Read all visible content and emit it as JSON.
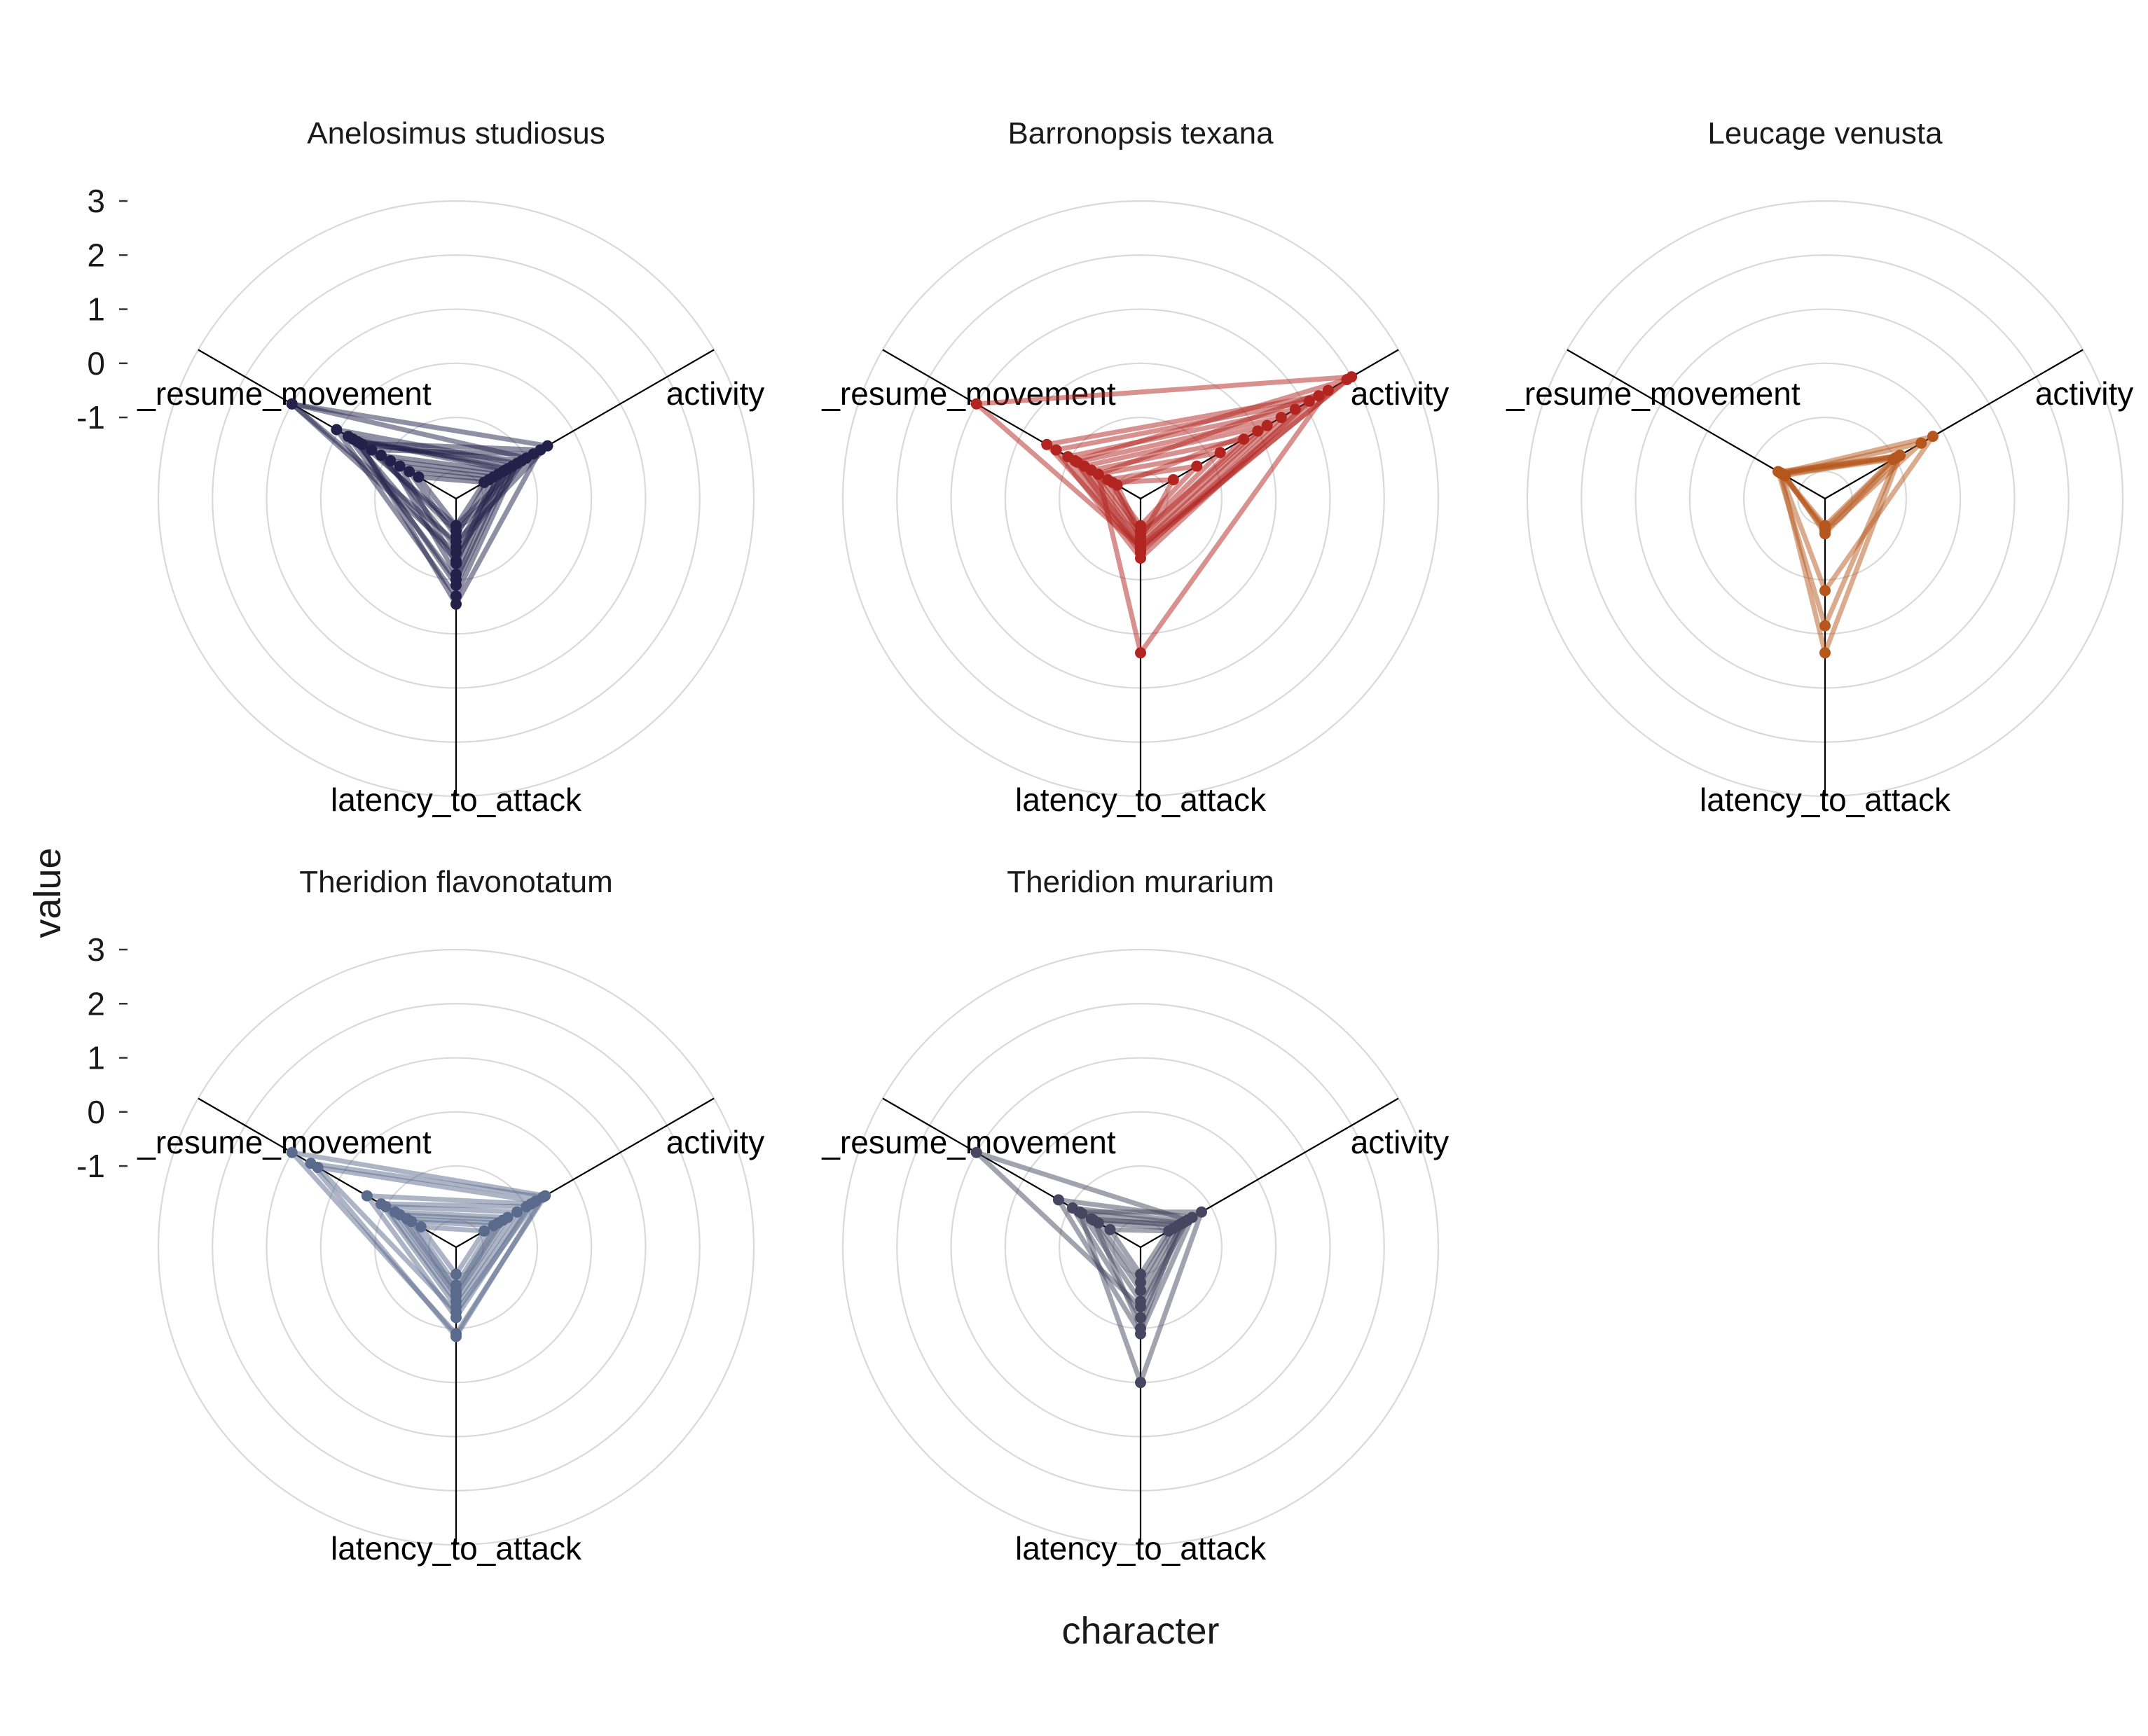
{
  "chart_data": {
    "type": "radar",
    "xlabel": "character",
    "ylabel": "value",
    "axes": [
      "activity",
      "latency_to_attack",
      "_resume_movement"
    ],
    "radial_ticks": [
      -1,
      0,
      1,
      2,
      3
    ],
    "rlim": [
      -2.5,
      3.0
    ],
    "grid": true,
    "panels": [
      {
        "title": "Anelosimus studiosus",
        "color": "#23204a",
        "series": [
          {
            "activity": -0.55,
            "latency_to_attack": -1.7,
            "_resume_movement": 1.0
          },
          {
            "activity": -1.2,
            "latency_to_attack": -0.7,
            "_resume_movement": 0.05
          },
          {
            "activity": -1.3,
            "latency_to_attack": -0.9,
            "_resume_movement": -0.4
          },
          {
            "activity": -0.85,
            "latency_to_attack": -1.9,
            "_resume_movement": -0.7
          },
          {
            "activity": -1.4,
            "latency_to_attack": -1.0,
            "_resume_movement": -0.2
          },
          {
            "activity": -1.5,
            "latency_to_attack": -1.6,
            "_resume_movement": -0.9
          },
          {
            "activity": -1.6,
            "latency_to_attack": -1.1,
            "_resume_movement": -1.1
          },
          {
            "activity": -1.1,
            "latency_to_attack": -2.0,
            "_resume_movement": -0.5
          },
          {
            "activity": -1.7,
            "latency_to_attack": -1.3,
            "_resume_movement": -1.3
          },
          {
            "activity": -1.0,
            "latency_to_attack": -1.5,
            "_resume_movement": 1.0
          },
          {
            "activity": -1.8,
            "latency_to_attack": -1.8,
            "_resume_movement": -1.5
          },
          {
            "activity": -1.45,
            "latency_to_attack": -1.35,
            "_resume_movement": -0.3
          },
          {
            "activity": -1.9,
            "latency_to_attack": -2.0,
            "_resume_movement": -1.7
          },
          {
            "activity": -0.7,
            "latency_to_attack": -0.55,
            "_resume_movement": -0.45
          }
        ]
      },
      {
        "title": "Barronopsis texana",
        "color": "#b2241f",
        "series": [
          {
            "activity": 2.0,
            "latency_to_attack": -1.6,
            "_resume_movement": 1.0
          },
          {
            "activity": 1.5,
            "latency_to_attack": 0.35,
            "_resume_movement": -1.6
          },
          {
            "activity": 1.1,
            "latency_to_attack": -1.4,
            "_resume_movement": -0.7
          },
          {
            "activity": 0.8,
            "latency_to_attack": -1.5,
            "_resume_movement": -0.95
          },
          {
            "activity": 0.5,
            "latency_to_attack": -1.65,
            "_resume_movement": -1.15
          },
          {
            "activity": 0.2,
            "latency_to_attack": -1.7,
            "_resume_movement": -1.3
          },
          {
            "activity": -0.3,
            "latency_to_attack": -1.8,
            "_resume_movement": -1.45
          },
          {
            "activity": -0.8,
            "latency_to_attack": -1.9,
            "_resume_movement": -1.6
          },
          {
            "activity": -1.3,
            "latency_to_attack": -2.0,
            "_resume_movement": -1.8
          },
          {
            "activity": 1.9,
            "latency_to_attack": -1.55,
            "_resume_movement": -1.1
          },
          {
            "activity": 1.3,
            "latency_to_attack": -1.6,
            "_resume_movement": -0.5
          },
          {
            "activity": 0.0,
            "latency_to_attack": -1.85,
            "_resume_movement": -2.0
          },
          {
            "activity": -1.8,
            "latency_to_attack": -1.75,
            "_resume_movement": -1.9
          }
        ]
      },
      {
        "title": "Leucage venusta",
        "color": "#b5571c",
        "series": [
          {
            "activity": -0.9,
            "latency_to_attack": 0.35,
            "_resume_movement": -1.55
          },
          {
            "activity": -0.95,
            "latency_to_attack": -0.15,
            "_resume_movement": -1.5
          },
          {
            "activity": -0.2,
            "latency_to_attack": -0.8,
            "_resume_movement": -1.55
          },
          {
            "activity": -0.45,
            "latency_to_attack": -1.9,
            "_resume_movement": -1.6
          },
          {
            "activity": -0.9,
            "latency_to_attack": -1.85,
            "_resume_movement": -1.65
          },
          {
            "activity": -1.0,
            "latency_to_attack": -1.95,
            "_resume_movement": -1.55
          },
          {
            "activity": -1.05,
            "latency_to_attack": -2.0,
            "_resume_movement": -1.6
          }
        ]
      },
      {
        "title": "Theridion flavonotatum",
        "color": "#5a6a8c",
        "series": [
          {
            "activity": -0.6,
            "latency_to_attack": -0.9,
            "_resume_movement": 1.0
          },
          {
            "activity": -0.65,
            "latency_to_attack": -0.85,
            "_resume_movement": 0.6
          },
          {
            "activity": -0.8,
            "latency_to_attack": -1.3,
            "_resume_movement": 0.45
          },
          {
            "activity": -1.0,
            "latency_to_attack": -1.4,
            "_resume_movement": -0.9
          },
          {
            "activity": -1.2,
            "latency_to_attack": -1.5,
            "_resume_movement": -1.0
          },
          {
            "activity": -1.4,
            "latency_to_attack": -1.6,
            "_resume_movement": -1.2
          },
          {
            "activity": -1.5,
            "latency_to_attack": -1.65,
            "_resume_movement": -1.3
          },
          {
            "activity": -1.6,
            "latency_to_attack": -1.7,
            "_resume_movement": -1.45
          },
          {
            "activity": -1.7,
            "latency_to_attack": -1.8,
            "_resume_movement": -1.55
          },
          {
            "activity": -1.9,
            "latency_to_attack": -2.0,
            "_resume_movement": -1.75
          },
          {
            "activity": -0.9,
            "latency_to_attack": -1.2,
            "_resume_movement": -0.6
          }
        ]
      },
      {
        "title": "Theridion murarium",
        "color": "#474660",
        "series": [
          {
            "activity": -1.5,
            "latency_to_attack": -1.4,
            "_resume_movement": 1.0
          },
          {
            "activity": -1.2,
            "latency_to_attack": 0.0,
            "_resume_movement": -1.2
          },
          {
            "activity": -1.4,
            "latency_to_attack": -0.9,
            "_resume_movement": -0.75
          },
          {
            "activity": -1.55,
            "latency_to_attack": -1.2,
            "_resume_movement": -1.05
          },
          {
            "activity": -1.6,
            "latency_to_attack": -1.5,
            "_resume_movement": -1.25
          },
          {
            "activity": -1.7,
            "latency_to_attack": -1.7,
            "_resume_movement": -1.45
          },
          {
            "activity": -1.8,
            "latency_to_attack": -1.85,
            "_resume_movement": -1.6
          },
          {
            "activity": -1.9,
            "latency_to_attack": -2.0,
            "_resume_movement": -1.85
          },
          {
            "activity": -1.65,
            "latency_to_attack": -1.0,
            "_resume_movement": -1.5
          }
        ]
      }
    ]
  }
}
